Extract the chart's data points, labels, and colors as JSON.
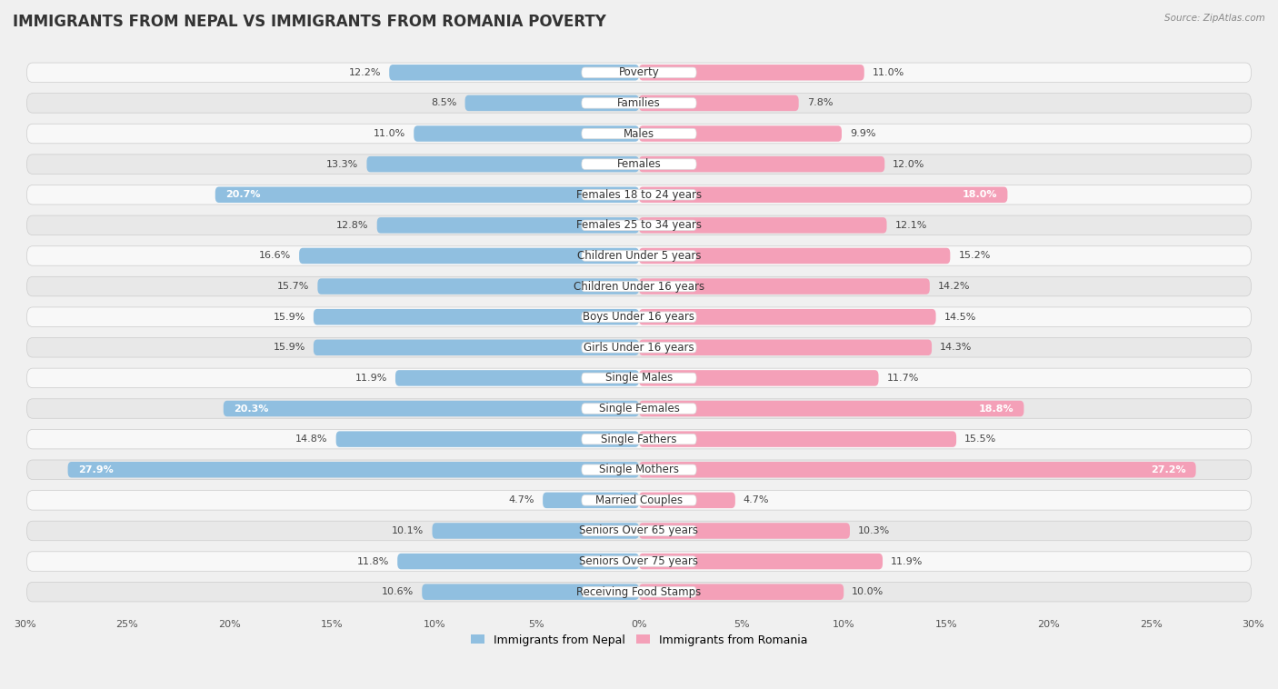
{
  "title": "IMMIGRANTS FROM NEPAL VS IMMIGRANTS FROM ROMANIA POVERTY",
  "source": "Source: ZipAtlas.com",
  "categories": [
    "Poverty",
    "Families",
    "Males",
    "Females",
    "Females 18 to 24 years",
    "Females 25 to 34 years",
    "Children Under 5 years",
    "Children Under 16 years",
    "Boys Under 16 years",
    "Girls Under 16 years",
    "Single Males",
    "Single Females",
    "Single Fathers",
    "Single Mothers",
    "Married Couples",
    "Seniors Over 65 years",
    "Seniors Over 75 years",
    "Receiving Food Stamps"
  ],
  "nepal_values": [
    12.2,
    8.5,
    11.0,
    13.3,
    20.7,
    12.8,
    16.6,
    15.7,
    15.9,
    15.9,
    11.9,
    20.3,
    14.8,
    27.9,
    4.7,
    10.1,
    11.8,
    10.6
  ],
  "romania_values": [
    11.0,
    7.8,
    9.9,
    12.0,
    18.0,
    12.1,
    15.2,
    14.2,
    14.5,
    14.3,
    11.7,
    18.8,
    15.5,
    27.2,
    4.7,
    10.3,
    11.9,
    10.0
  ],
  "nepal_color": "#90bfe0",
  "romania_color": "#f4a0b8",
  "nepal_label": "Immigrants from Nepal",
  "romania_label": "Immigrants from Romania",
  "max_value": 30.0,
  "background_color": "#f0f0f0",
  "row_bg_color": "#e8e8e8",
  "row_light_color": "#f8f8f8",
  "title_fontsize": 12,
  "label_fontsize": 8.5,
  "value_fontsize": 8.0,
  "inside_label_threshold": 18.0
}
